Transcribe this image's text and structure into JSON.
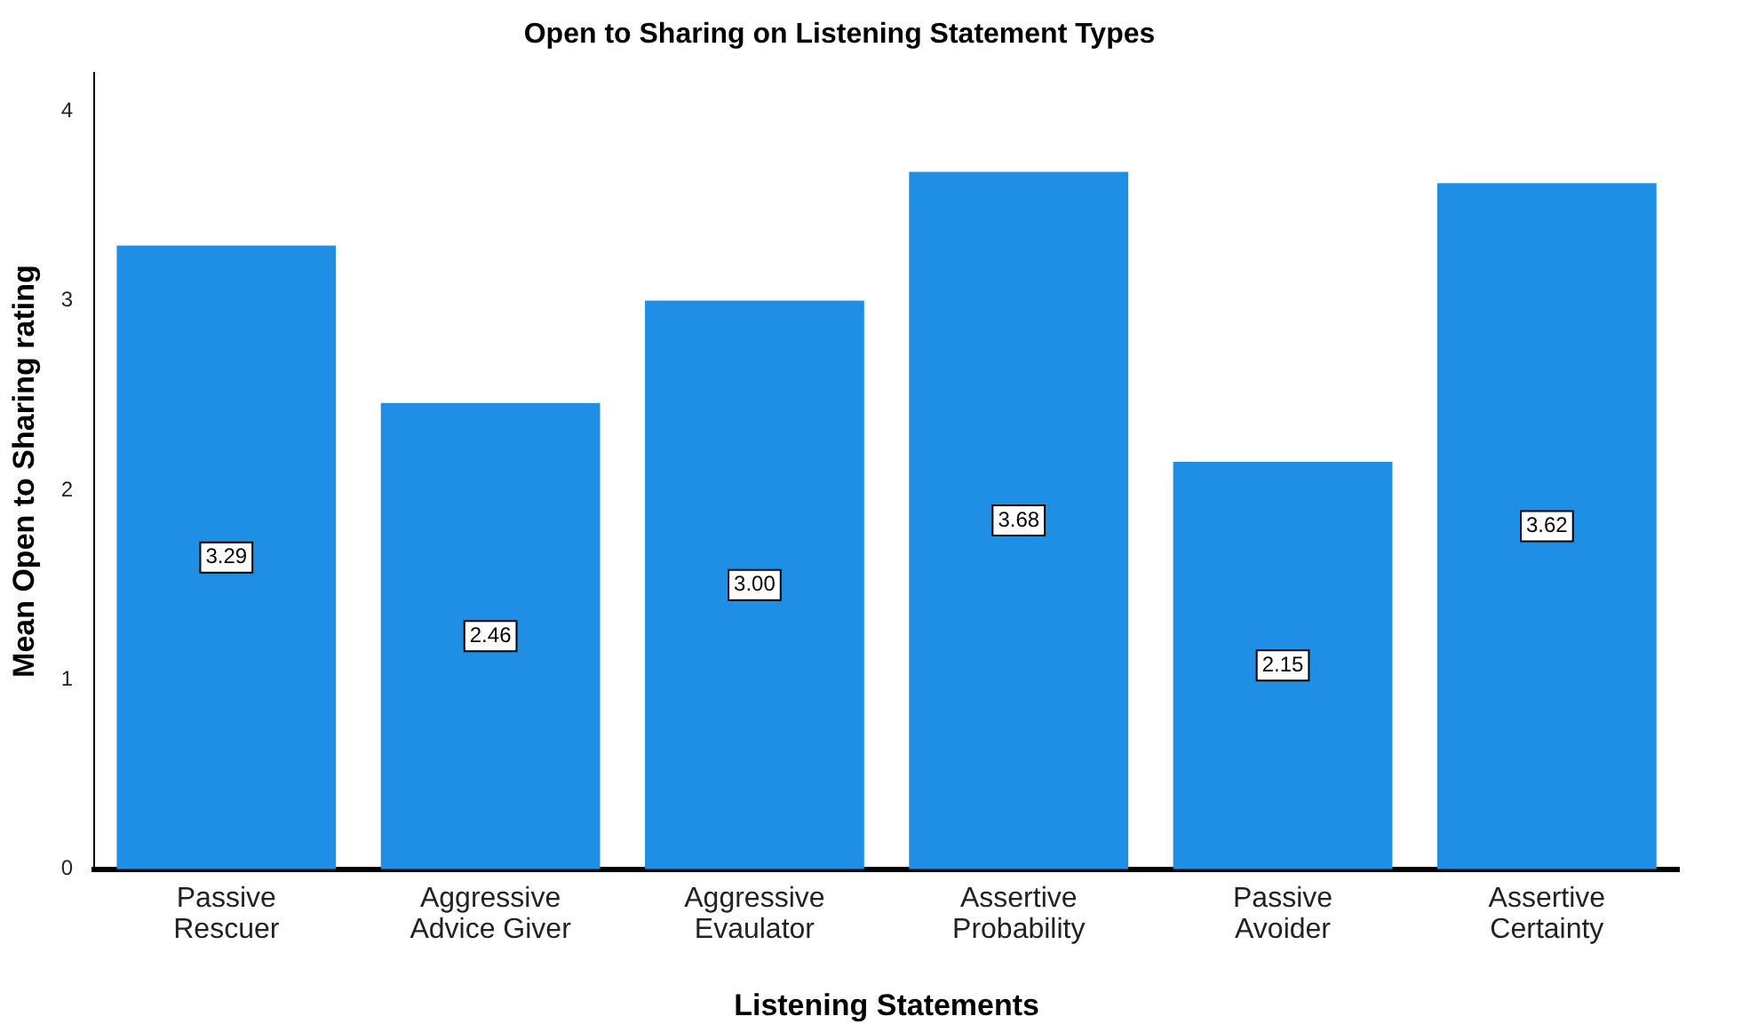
{
  "chart_data": {
    "type": "bar",
    "title": "Open to Sharing on Listening Statement Types",
    "xlabel": "Listening Statements",
    "ylabel": "Mean Open to Sharing rating",
    "categories": [
      "Passive Rescuer",
      "Aggressive Advice Giver",
      "Aggressive Evaulator",
      "Assertive Probability",
      "Passive Avoider",
      "Assertive Certainty"
    ],
    "values": [
      3.29,
      2.46,
      3.0,
      3.68,
      2.15,
      3.62
    ],
    "value_labels": [
      "3.29",
      "2.46",
      "3.00",
      "3.68",
      "2.15",
      "3.62"
    ],
    "color": "#1f8fe6",
    "ylim": [
      0,
      4.2
    ],
    "yticks": [
      0,
      1,
      2,
      3,
      4
    ],
    "grid": false,
    "legend": false
  }
}
